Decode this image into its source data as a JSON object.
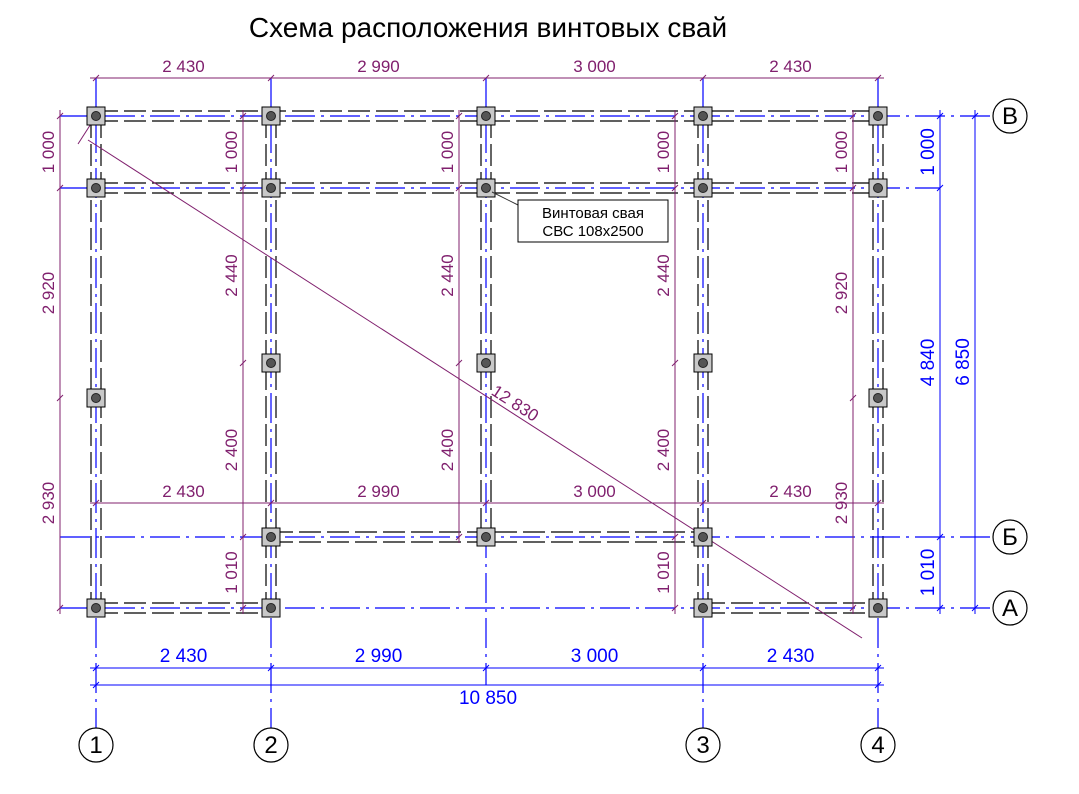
{
  "title": "Схема расположения винтовых свай",
  "callout": {
    "line1": "Винтовая свая",
    "line2": "СВС 108x2500"
  },
  "axes": {
    "rows": [
      "В",
      "Б",
      "А"
    ],
    "cols": [
      "1",
      "2",
      "3",
      "4"
    ]
  },
  "dims_top": [
    "2 430",
    "2 990",
    "3 000",
    "2 430"
  ],
  "dims_middle": [
    "2 430",
    "2 990",
    "3 000",
    "2 430"
  ],
  "dims_bottom": [
    "2 430",
    "2 990",
    "3 000",
    "2 430"
  ],
  "dim_total_bottom": "10 850",
  "dims_vertical": {
    "col1": [
      "1 000",
      "2 920",
      "2 930"
    ],
    "col2": [
      "1 000",
      "2 440",
      "2 400",
      "1 010"
    ],
    "col3": [
      "1 000",
      "2 440",
      "2 400"
    ],
    "col4": [
      "1 000",
      "2 440",
      "2 400",
      "1 010"
    ],
    "col5": [
      "1 000",
      "2 920",
      "2 930"
    ]
  },
  "dims_right": [
    "1 000",
    "4 840",
    "1 010"
  ],
  "dim_total_right": "6 850",
  "diagonal": "12 830",
  "colors": {
    "dim_purple": "#80206e",
    "axis_blue": "#0000ff",
    "pile_fill": "#c8c8c8",
    "pile_core": "#555555"
  }
}
